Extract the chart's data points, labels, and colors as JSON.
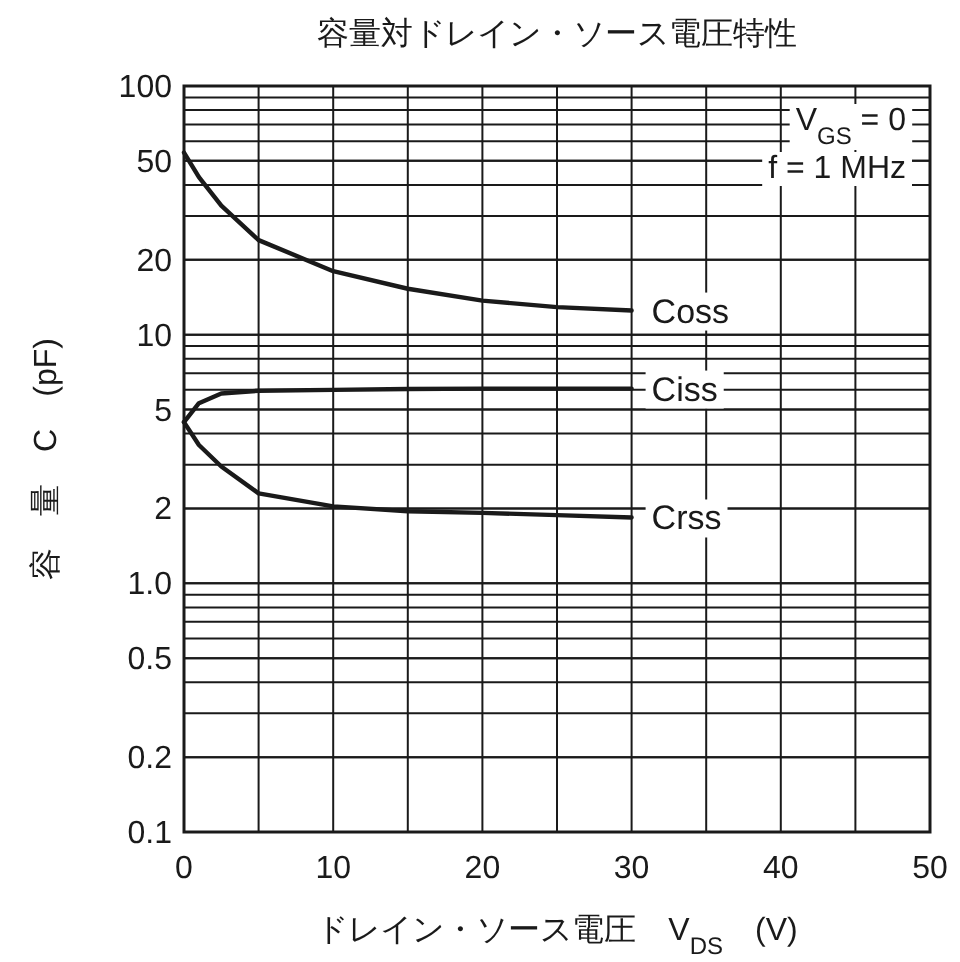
{
  "chart_data": {
    "type": "line",
    "title": "容量対ドレイン・ソース電圧特性",
    "xlabel": "ドレイン・ソース電圧　V$_{DS}$　(V)",
    "ylabel": "容　量　C　(pF)",
    "log": "y",
    "grid": true,
    "marker": "none",
    "line_style": "solid",
    "xlim": [
      0,
      50
    ],
    "xticks": [
      0,
      {
        "value": 5,
        "label": null
      },
      10,
      {
        "value": 15,
        "label": null
      },
      20,
      {
        "value": 25,
        "label": null
      },
      30,
      {
        "value": 35,
        "label": null
      },
      40,
      {
        "value": 45,
        "label": null
      },
      50
    ],
    "ylim": [
      0.1,
      100
    ],
    "yticks": [
      0.1,
      0.2,
      0.5,
      {
        "value": 1,
        "label": "1.0"
      },
      2,
      5,
      10,
      20,
      50,
      100
    ],
    "x": [
      0,
      1,
      2.5,
      5,
      10,
      15,
      20,
      25,
      30
    ],
    "series": [
      {
        "name": "Coss",
        "color": "#1a1a1a",
        "values": [
          54,
          43,
          33,
          24,
          18,
          15.3,
          13.7,
          12.9,
          12.5
        ]
      },
      {
        "name": "Ciss",
        "color": "#1a1a1a",
        "values": [
          4.45,
          5.3,
          5.8,
          5.95,
          6.0,
          6.05,
          6.07,
          6.07,
          6.07
        ]
      },
      {
        "name": "Crss",
        "color": "#1a1a1a",
        "values": [
          4.45,
          3.6,
          2.95,
          2.3,
          2.04,
          1.95,
          1.92,
          1.88,
          1.84
        ]
      }
    ],
    "annotations": [
      "V$_{GS}$ = 0",
      "f = 1 MHz"
    ]
  }
}
